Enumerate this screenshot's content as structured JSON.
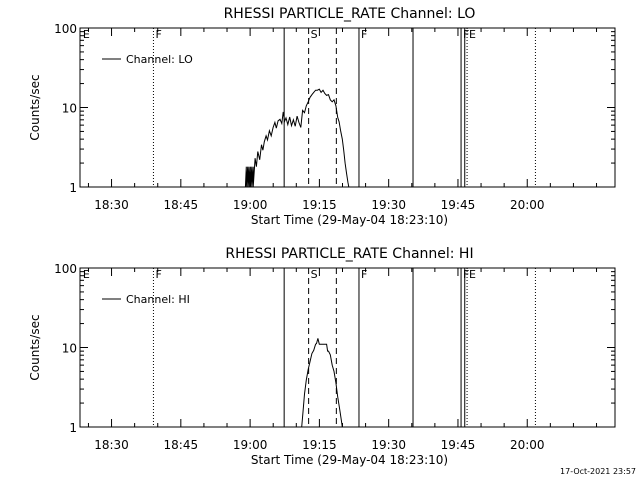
{
  "footer_timestamp": "17-Oct-2021 23:57",
  "chart_data": [
    {
      "type": "line",
      "title": "RHESSI PARTICLE_RATE Channel: LO",
      "xlabel": "Start Time (29-May-04 18:23:10)",
      "ylabel": "Counts/sec",
      "y_scale": "log",
      "ylim": [
        1,
        100
      ],
      "xlim_minutes": [
        0,
        115.83
      ],
      "x_ticks": [
        {
          "minute": 6.83,
          "label": "18:30"
        },
        {
          "minute": 21.83,
          "label": "18:45"
        },
        {
          "minute": 36.83,
          "label": "19:00"
        },
        {
          "minute": 51.83,
          "label": "19:15"
        },
        {
          "minute": 66.83,
          "label": "19:30"
        },
        {
          "minute": 81.83,
          "label": "19:45"
        },
        {
          "minute": 96.83,
          "label": "20:00"
        }
      ],
      "y_ticks": [
        {
          "value": 1,
          "label": "1"
        },
        {
          "value": 10,
          "label": "10"
        },
        {
          "value": 100,
          "label": "100"
        }
      ],
      "legend": {
        "label": "Channel: LO",
        "position": "top-left"
      },
      "markers": [
        {
          "minute": 0.2,
          "label": "E",
          "style": "none"
        },
        {
          "minute": 15.9,
          "label": "F",
          "style": "dotted"
        },
        {
          "minute": 44.2,
          "label": "",
          "style": "solid"
        },
        {
          "minute": 49.5,
          "label": "S",
          "style": "dashed"
        },
        {
          "minute": 55.5,
          "label": "",
          "style": "dashed"
        },
        {
          "minute": 60.4,
          "label": "F",
          "style": "solid"
        },
        {
          "minute": 72.1,
          "label": "",
          "style": "solid"
        },
        {
          "minute": 82.5,
          "label": "F",
          "style": "solid"
        },
        {
          "minute": 83.3,
          "label": "",
          "style": "solid"
        },
        {
          "minute": 83.8,
          "label": "E",
          "style": "dotted"
        },
        {
          "minute": 98.6,
          "label": "",
          "style": "dotted"
        }
      ],
      "series": [
        {
          "name": "Channel: LO",
          "x": [
            35.8,
            36.0,
            36.0,
            36.3,
            36.3,
            36.6,
            36.6,
            36.9,
            36.9,
            37.2,
            37.2,
            37.5,
            37.5,
            37.9,
            38.2,
            38.5,
            38.9,
            39.3,
            39.6,
            39.9,
            40.3,
            40.6,
            41.0,
            41.4,
            41.8,
            42.2,
            42.5,
            42.9,
            43.3,
            43.7,
            44.0,
            44.3,
            44.6,
            45.0,
            45.4,
            45.8,
            46.2,
            46.6,
            47.0,
            47.4,
            47.8,
            48.2,
            48.6,
            49.0,
            49.4,
            49.8,
            50.2,
            50.6,
            51.0,
            51.4,
            51.8,
            52.2,
            52.6,
            53.0,
            53.4,
            53.8,
            54.2,
            54.6,
            55.0,
            55.4,
            55.8,
            56.1,
            56.4,
            56.8,
            57.1,
            57.4,
            57.7,
            58.0,
            58.2
          ],
          "y": [
            1.0,
            1.8,
            1.0,
            1.8,
            1.0,
            1.8,
            1.0,
            1.8,
            1.0,
            1.8,
            1.0,
            1.8,
            1.0,
            2.3,
            1.8,
            2.8,
            2.2,
            3.4,
            2.9,
            3.7,
            4.4,
            3.9,
            5.1,
            4.4,
            5.6,
            6.5,
            5.5,
            6.8,
            7.1,
            6.3,
            8.8,
            6.7,
            7.4,
            6.1,
            7.6,
            5.9,
            7.0,
            5.8,
            7.8,
            6.5,
            5.6,
            9.2,
            8.6,
            10.5,
            11.8,
            13.4,
            14.5,
            15.5,
            16.5,
            16.5,
            17.0,
            15.5,
            16.5,
            15.0,
            14.2,
            14.5,
            12.5,
            11.8,
            12.5,
            10.5,
            7.5,
            6.6,
            5.2,
            4.0,
            2.9,
            2.0,
            1.5,
            1.15,
            1.0
          ]
        }
      ]
    },
    {
      "type": "line",
      "title": "RHESSI PARTICLE_RATE Channel: HI",
      "xlabel": "Start Time (29-May-04 18:23:10)",
      "ylabel": "Counts/sec",
      "y_scale": "log",
      "ylim": [
        1,
        100
      ],
      "xlim_minutes": [
        0,
        115.83
      ],
      "x_ticks": [
        {
          "minute": 6.83,
          "label": "18:30"
        },
        {
          "minute": 21.83,
          "label": "18:45"
        },
        {
          "minute": 36.83,
          "label": "19:00"
        },
        {
          "minute": 51.83,
          "label": "19:15"
        },
        {
          "minute": 66.83,
          "label": "19:30"
        },
        {
          "minute": 81.83,
          "label": "19:45"
        },
        {
          "minute": 96.83,
          "label": "20:00"
        }
      ],
      "y_ticks": [
        {
          "value": 1,
          "label": "1"
        },
        {
          "value": 10,
          "label": "10"
        },
        {
          "value": 100,
          "label": "100"
        }
      ],
      "legend": {
        "label": "Channel: HI",
        "position": "top-left"
      },
      "markers": [
        {
          "minute": 0.2,
          "label": "E",
          "style": "none"
        },
        {
          "minute": 15.9,
          "label": "F",
          "style": "dotted"
        },
        {
          "minute": 44.2,
          "label": "",
          "style": "solid"
        },
        {
          "minute": 49.5,
          "label": "S",
          "style": "dashed"
        },
        {
          "minute": 55.5,
          "label": "",
          "style": "dashed"
        },
        {
          "minute": 60.4,
          "label": "F",
          "style": "solid"
        },
        {
          "minute": 72.1,
          "label": "",
          "style": "solid"
        },
        {
          "minute": 82.5,
          "label": "F",
          "style": "solid"
        },
        {
          "minute": 83.3,
          "label": "",
          "style": "solid"
        },
        {
          "minute": 83.8,
          "label": "E",
          "style": "dotted"
        },
        {
          "minute": 98.6,
          "label": "",
          "style": "dotted"
        }
      ],
      "series": [
        {
          "name": "Channel: HI",
          "x": [
            48.0,
            48.3,
            48.6,
            49.0,
            49.4,
            49.8,
            50.2,
            50.6,
            51.0,
            51.2,
            51.5,
            51.8,
            52.2,
            52.6,
            53.0,
            53.4,
            53.6,
            53.8,
            54.2,
            54.6,
            55.0,
            55.4,
            55.8,
            56.2,
            56.6,
            56.8
          ],
          "y": [
            1.0,
            1.6,
            2.6,
            3.9,
            5.3,
            6.6,
            8.4,
            9.2,
            11.0,
            11.2,
            13.0,
            11.0,
            11.0,
            11.0,
            11.0,
            11.0,
            9.0,
            9.0,
            8.1,
            6.0,
            5.0,
            3.6,
            2.4,
            1.7,
            1.2,
            1.0
          ]
        }
      ]
    }
  ]
}
